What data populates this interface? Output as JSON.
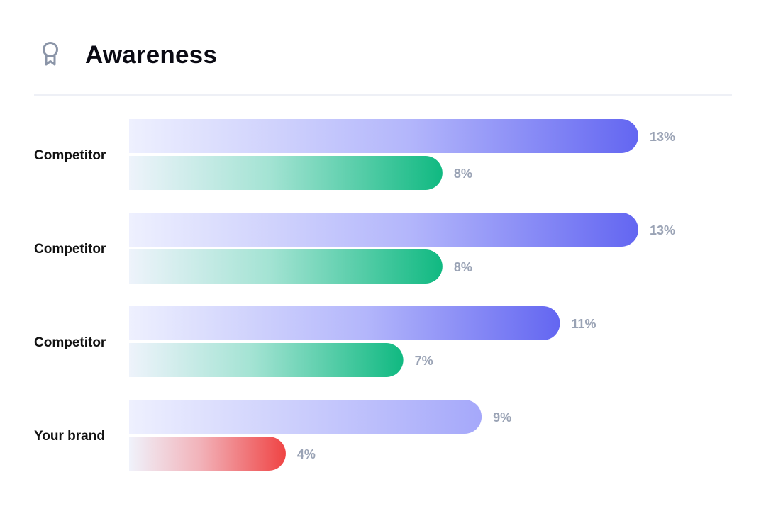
{
  "header": {
    "title": "Awareness",
    "icon": "award-ribbon-icon"
  },
  "colors": {
    "primary_series": "#6366f1",
    "secondary_series": "#10b981",
    "brand_secondary_series": "#ef4444",
    "brand_primary_series": "#a5a8fa",
    "value_label": "#9aa3b5"
  },
  "chart_data": {
    "type": "bar",
    "orientation": "horizontal",
    "categories": [
      "Competitor",
      "Competitor",
      "Competitor",
      "Your brand"
    ],
    "series": [
      {
        "values": [
          13,
          13,
          11,
          9
        ],
        "labels": [
          "13%",
          "13%",
          "11%",
          "9%"
        ]
      },
      {
        "values": [
          8,
          8,
          7,
          4
        ],
        "labels": [
          "8%",
          "8%",
          "7%",
          "4%"
        ]
      }
    ],
    "unit": "%",
    "xlim": [
      0,
      13
    ],
    "grid": false,
    "legend": "none"
  }
}
